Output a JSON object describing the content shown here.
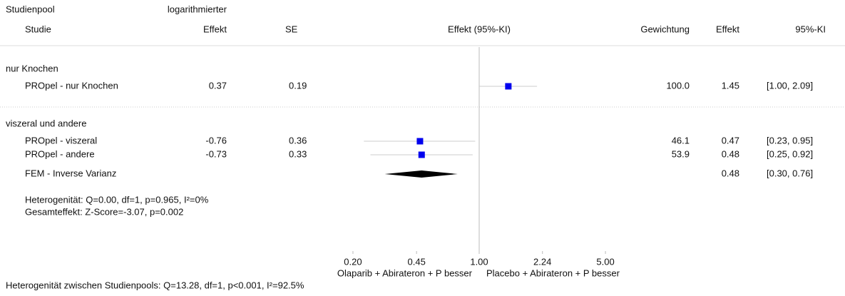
{
  "chart_data": {
    "type": "forest",
    "headers": {
      "pool": "Studienpool",
      "study": "Studie",
      "log_effect_1": "logarithmierter",
      "log_effect_2": "Effekt",
      "se": "SE",
      "plot": "Effekt (95%-KI)",
      "weight": "Gewichtung",
      "effect": "Effekt",
      "ci": "95%-KI"
    },
    "groups": [
      {
        "name": "nur Knochen",
        "studies": [
          {
            "name": "PROpel - nur Knochen",
            "log_effect": 0.37,
            "se": 0.19,
            "weight": {
              "value": 100,
              "label": "100.0"
            },
            "effect": 1.45,
            "ci": [
              1,
              2.09
            ],
            "ci_label": "[1.00, 2.09]"
          }
        ]
      },
      {
        "name": "viszeral und andere",
        "studies": [
          {
            "name": "PROpel - viszeral",
            "log_effect": -0.76,
            "se": 0.36,
            "weight": {
              "value": 46.1,
              "label": "46.1"
            },
            "effect": 0.47,
            "ci": [
              0.23,
              0.95
            ],
            "ci_label": "[0.23, 0.95]"
          },
          {
            "name": "PROpel - andere",
            "log_effect": -0.73,
            "se": 0.33,
            "weight": {
              "value": 53.9,
              "label": "53.9"
            },
            "effect": 0.48,
            "ci": [
              0.25,
              0.92
            ],
            "ci_label": "[0.25, 0.92]"
          }
        ],
        "pooled": {
          "name": "FEM - Inverse Varianz",
          "effect": 0.48,
          "ci": [
            0.3,
            0.76
          ],
          "ci_label": "[0.30, 0.76]"
        },
        "notes": [
          "Heterogenität: Q=0.00, df=1, p=0.965, I²=0%",
          "Gesamteffekt: Z-Score=-3.07, p=0.002"
        ]
      }
    ],
    "xlim": [
      0.2,
      5
    ],
    "log_x": true,
    "reference": 1,
    "xticks": [
      {
        "value": 0.2,
        "label": "0.20"
      },
      {
        "value": 0.45,
        "label": "0.45"
      },
      {
        "value": 1,
        "label": "1.00"
      },
      {
        "value": 2.24,
        "label": "2.24"
      },
      {
        "value": 5,
        "label": "5.00"
      }
    ],
    "x_label_left": "Olaparib + Abirateron + P besser",
    "x_label_right": "Placebo + Abirateron + P besser",
    "marker_color": "#0000ee",
    "footer": "Heterogenität zwischen Studienpools: Q=13.28, df=1, p<0.001, I²=92.5%"
  }
}
